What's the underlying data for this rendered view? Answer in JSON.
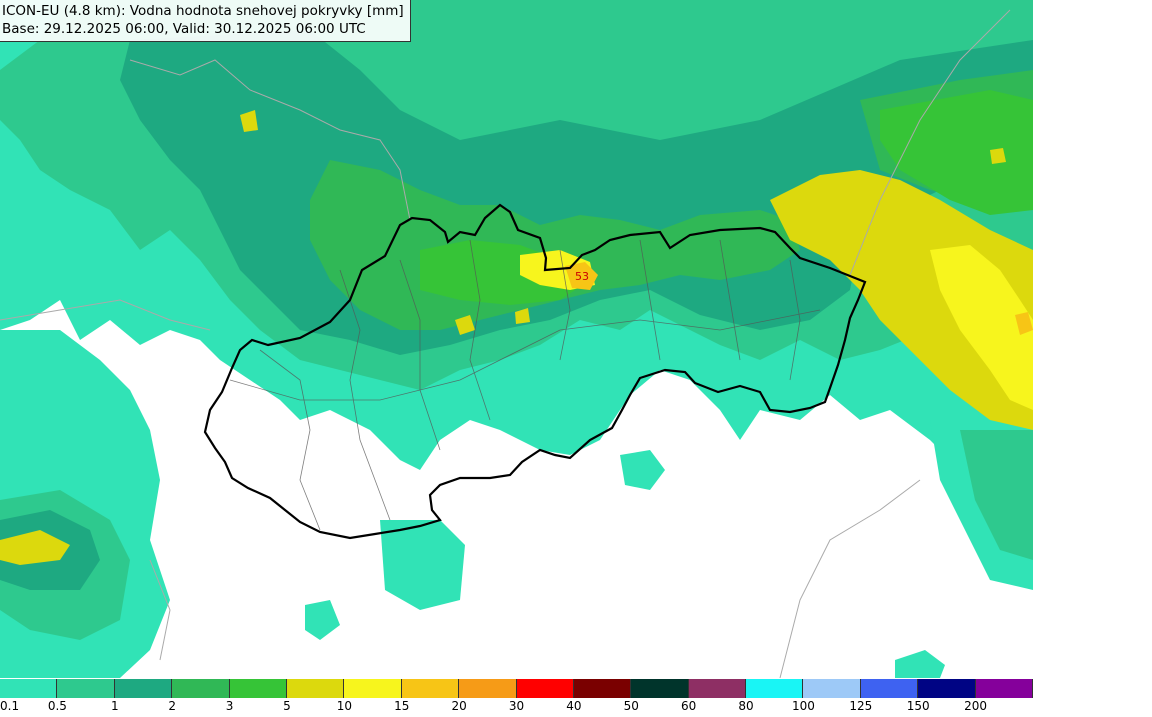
{
  "title": {
    "line1": "ICON-EU (4.8 km): Vodna hodnota snehovej pokryvky [mm]",
    "line2": "Base: 29.12.2025 06:00, Valid: 30.12.2025 06:00 UTC"
  },
  "map": {
    "peak_label": "53",
    "palette": {
      "bg": "#ffffff",
      "c01": "#31e3b6",
      "c05": "#2ec98e",
      "c1": "#1ea981",
      "c2": "#30b856",
      "c3": "#36c437",
      "c5": "#dcd90d",
      "c10": "#f7f51d",
      "c15": "#f7c516",
      "border": "#000000",
      "district": "#555555",
      "country": "#aaaaaa"
    }
  },
  "legend": {
    "colors": [
      "#31e3b6",
      "#2ec98e",
      "#1ea981",
      "#30b856",
      "#36c437",
      "#dcd90d",
      "#f7f51d",
      "#f7c516",
      "#f69b17",
      "#ff0000",
      "#7a0000",
      "#00342b",
      "#8e2f64",
      "#19f5f5",
      "#9dc9f7",
      "#3e62f1",
      "#000484",
      "#85009b"
    ],
    "labels": [
      "0.1",
      "0.5",
      "1",
      "2",
      "3",
      "5",
      "10",
      "15",
      "20",
      "30",
      "40",
      "50",
      "60",
      "80",
      "100",
      "125",
      "150",
      "200"
    ]
  }
}
